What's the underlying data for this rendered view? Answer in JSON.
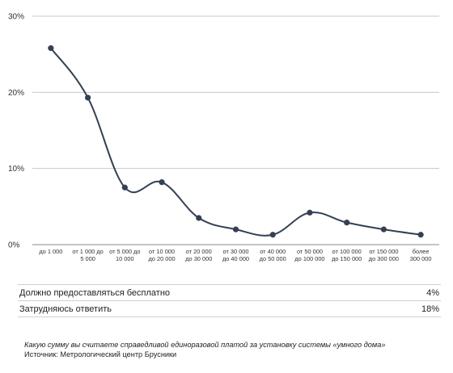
{
  "chart_data": {
    "type": "line",
    "categories": [
      [
        "до 1 000"
      ],
      [
        "от 1 000 до",
        "5 000"
      ],
      [
        "от 5 000 до",
        "10 000"
      ],
      [
        "от 10 000",
        "до 20 000"
      ],
      [
        "от 20 000",
        "до 30 000"
      ],
      [
        "от 30 000",
        "до 40 000"
      ],
      [
        "от 40 000",
        "до 50 000"
      ],
      [
        "от 50 000",
        "до 100 000"
      ],
      [
        "от 100 000",
        "до 150 000"
      ],
      [
        "от 150 000",
        "до 300 000"
      ],
      [
        "более",
        "300 000"
      ]
    ],
    "values": [
      25.8,
      19.3,
      7.5,
      8.2,
      3.5,
      2.0,
      1.3,
      4.2,
      2.9,
      2.0,
      1.3
    ],
    "yticks": [
      "0%",
      "10%",
      "20%",
      "30%"
    ],
    "ylim": [
      0,
      30
    ],
    "grid": true,
    "line_color": "#344054"
  },
  "summary_rows": [
    {
      "label": "Должно предоставляться бесплатно",
      "value": "4%"
    },
    {
      "label": "Затрудняюсь ответить",
      "value": "18%"
    }
  ],
  "notes": {
    "question": "Какую сумму вы считаете справедливой единоразовой платой за установку системы «умного дома»",
    "source": "Источник: Метрологический центр Брусники"
  }
}
